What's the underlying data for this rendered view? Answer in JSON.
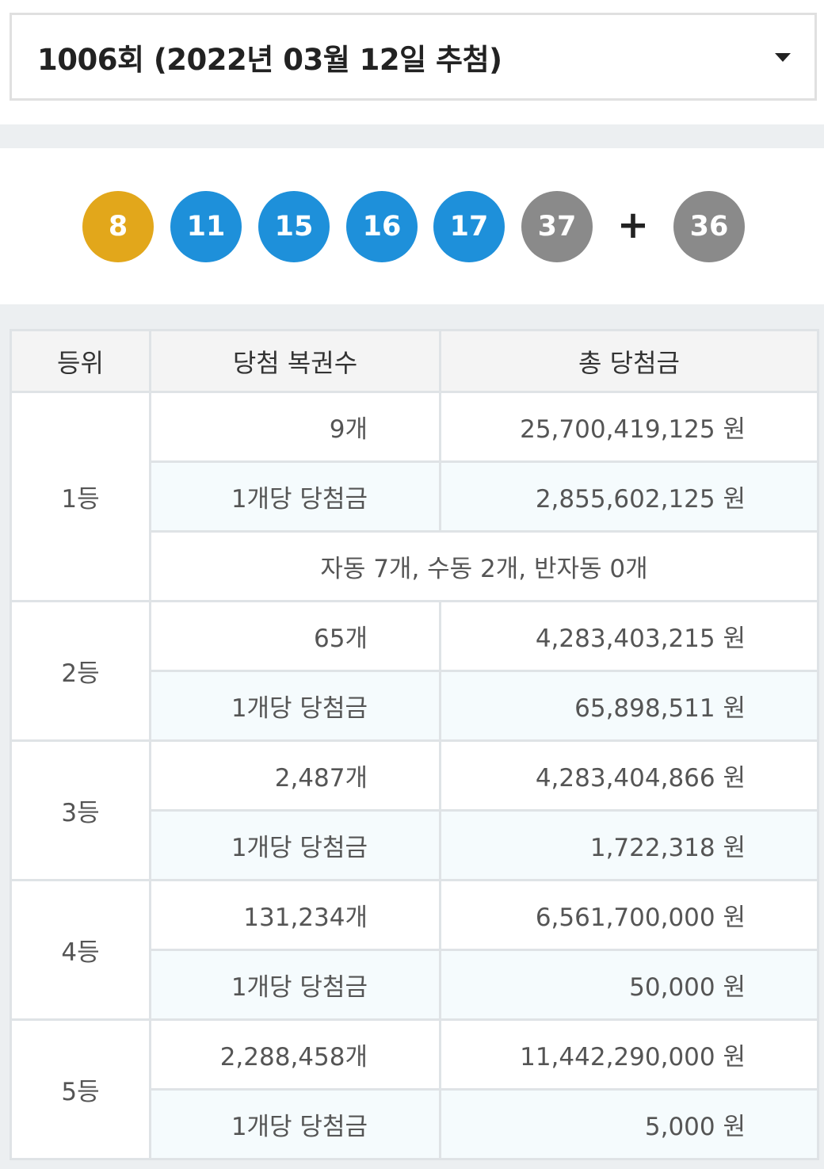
{
  "draw_select": {
    "label": "1006회 (2022년 03월 12일 추첨)"
  },
  "balls": [
    {
      "number": "8",
      "color": "#e2a71b"
    },
    {
      "number": "11",
      "color": "#1e90da"
    },
    {
      "number": "15",
      "color": "#1e90da"
    },
    {
      "number": "16",
      "color": "#1e90da"
    },
    {
      "number": "17",
      "color": "#1e90da"
    },
    {
      "number": "37",
      "color": "#8a8a8a"
    }
  ],
  "plus": "+",
  "bonus_ball": {
    "number": "36",
    "color": "#8a8a8a"
  },
  "table": {
    "headers": [
      "등위",
      "당첨 복권수",
      "총 당첨금"
    ],
    "per_label": "1개당 당첨금",
    "rows": [
      {
        "rank": "1등",
        "count": "9개",
        "total": "25,700,419,125 원",
        "per_amount": "2,855,602,125 원",
        "method": "자동 7개, 수동 2개, 반자동 0개"
      },
      {
        "rank": "2등",
        "count": "65개",
        "total": "4,283,403,215 원",
        "per_amount": "65,898,511 원"
      },
      {
        "rank": "3등",
        "count": "2,487개",
        "total": "4,283,404,866 원",
        "per_amount": "1,722,318 원"
      },
      {
        "rank": "4등",
        "count": "131,234개",
        "total": "6,561,700,000 원",
        "per_amount": "50,000 원"
      },
      {
        "rank": "5등",
        "count": "2,288,458개",
        "total": "11,442,290,000 원",
        "per_amount": "5,000 원"
      }
    ]
  }
}
